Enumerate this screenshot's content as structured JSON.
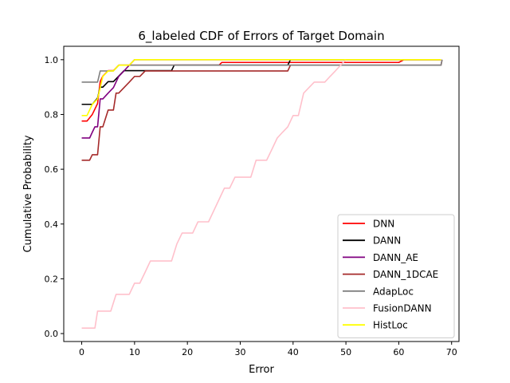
{
  "chart_data": {
    "type": "line",
    "title": "6_labeled CDF of Errors of Target Domain",
    "xlabel": "Error",
    "ylabel": "Cumulative Probability",
    "xlim": [
      -3.4,
      71.4
    ],
    "ylim": [
      -0.029,
      1.049
    ],
    "xticks": [
      0,
      10,
      20,
      30,
      40,
      50,
      60,
      70
    ],
    "yticks": [
      0.0,
      0.2,
      0.4,
      0.6,
      0.8,
      1.0
    ],
    "xtick_labels": [
      "0",
      "10",
      "20",
      "30",
      "40",
      "50",
      "60",
      "70"
    ],
    "ytick_labels": [
      "0.0",
      "0.2",
      "0.4",
      "0.6",
      "0.8",
      "1.0"
    ],
    "grid": false,
    "legend": "lower-right",
    "series": [
      {
        "name": "DNN",
        "color": "#ff0000",
        "points": [
          [
            0,
            0.776
          ],
          [
            1,
            0.776
          ],
          [
            2,
            0.8
          ],
          [
            2.5,
            0.82
          ],
          [
            3,
            0.84
          ],
          [
            3.5,
            0.92
          ],
          [
            4,
            0.94
          ],
          [
            5,
            0.96
          ],
          [
            6,
            0.96
          ],
          [
            7,
            0.98
          ],
          [
            9,
            0.98
          ],
          [
            10,
            0.98
          ],
          [
            26,
            0.98
          ],
          [
            26.5,
            0.99
          ],
          [
            27,
            0.99
          ],
          [
            40,
            0.99
          ],
          [
            50,
            0.99
          ],
          [
            60,
            0.99
          ],
          [
            61,
            1.0
          ],
          [
            68,
            1.0
          ]
        ]
      },
      {
        "name": "DANN",
        "color": "#000000",
        "points": [
          [
            0,
            0.837
          ],
          [
            2,
            0.837
          ],
          [
            3,
            0.86
          ],
          [
            3.5,
            0.9
          ],
          [
            4,
            0.9
          ],
          [
            5,
            0.92
          ],
          [
            6,
            0.92
          ],
          [
            7,
            0.94
          ],
          [
            8,
            0.96
          ],
          [
            17,
            0.96
          ],
          [
            17.5,
            0.98
          ],
          [
            39,
            0.98
          ],
          [
            39.5,
            1.0
          ],
          [
            68,
            1.0
          ]
        ]
      },
      {
        "name": "DANN_AE",
        "color": "#800080",
        "points": [
          [
            0,
            0.714
          ],
          [
            1.5,
            0.714
          ],
          [
            2,
            0.735
          ],
          [
            2.5,
            0.755
          ],
          [
            3,
            0.755
          ],
          [
            3.5,
            0.857
          ],
          [
            4,
            0.857
          ],
          [
            5,
            0.878
          ],
          [
            6,
            0.898
          ],
          [
            7,
            0.939
          ],
          [
            8,
            0.959
          ],
          [
            9,
            0.98
          ],
          [
            10,
            1.0
          ],
          [
            68,
            1.0
          ]
        ]
      },
      {
        "name": "DANN_1DCAE",
        "color": "#a52a2a",
        "points": [
          [
            0,
            0.633
          ],
          [
            1.5,
            0.633
          ],
          [
            2,
            0.653
          ],
          [
            3,
            0.653
          ],
          [
            3.5,
            0.755
          ],
          [
            4,
            0.755
          ],
          [
            5,
            0.816
          ],
          [
            6,
            0.816
          ],
          [
            6.5,
            0.878
          ],
          [
            7,
            0.878
          ],
          [
            8,
            0.898
          ],
          [
            9,
            0.918
          ],
          [
            10,
            0.939
          ],
          [
            11,
            0.939
          ],
          [
            12,
            0.959
          ],
          [
            39,
            0.959
          ],
          [
            39.5,
            0.98
          ],
          [
            68,
            0.98
          ],
          [
            68.2,
            1.0
          ]
        ]
      },
      {
        "name": "AdapLoc",
        "color": "#808080",
        "points": [
          [
            0,
            0.918
          ],
          [
            3,
            0.918
          ],
          [
            3.5,
            0.959
          ],
          [
            6,
            0.959
          ],
          [
            7,
            0.98
          ],
          [
            68,
            0.98
          ],
          [
            68.2,
            1.0
          ]
        ]
      },
      {
        "name": "FusionDANN",
        "color": "#ffc0cb",
        "points": [
          [
            0,
            0.02
          ],
          [
            2.5,
            0.02
          ],
          [
            3,
            0.082
          ],
          [
            5.5,
            0.082
          ],
          [
            6.5,
            0.143
          ],
          [
            9,
            0.143
          ],
          [
            10,
            0.184
          ],
          [
            11,
            0.184
          ],
          [
            12,
            0.224
          ],
          [
            13,
            0.265
          ],
          [
            17,
            0.265
          ],
          [
            18,
            0.327
          ],
          [
            19,
            0.367
          ],
          [
            21,
            0.367
          ],
          [
            22,
            0.408
          ],
          [
            24,
            0.408
          ],
          [
            25,
            0.449
          ],
          [
            26,
            0.49
          ],
          [
            27,
            0.531
          ],
          [
            28,
            0.531
          ],
          [
            29,
            0.571
          ],
          [
            32,
            0.571
          ],
          [
            33,
            0.633
          ],
          [
            35,
            0.633
          ],
          [
            36,
            0.673
          ],
          [
            37,
            0.714
          ],
          [
            38,
            0.735
          ],
          [
            39,
            0.755
          ],
          [
            40,
            0.796
          ],
          [
            41,
            0.796
          ],
          [
            41.5,
            0.837
          ],
          [
            42,
            0.878
          ],
          [
            43,
            0.898
          ],
          [
            44,
            0.918
          ],
          [
            46,
            0.918
          ],
          [
            47,
            0.939
          ],
          [
            48,
            0.959
          ],
          [
            49,
            0.98
          ],
          [
            50,
            1.0
          ],
          [
            68,
            1.0
          ]
        ]
      },
      {
        "name": "HistLoc",
        "color": "#ffff00",
        "points": [
          [
            0,
            0.796
          ],
          [
            1,
            0.796
          ],
          [
            2,
            0.837
          ],
          [
            3,
            0.857
          ],
          [
            3.5,
            0.898
          ],
          [
            4,
            0.939
          ],
          [
            5,
            0.959
          ],
          [
            6,
            0.959
          ],
          [
            7,
            0.98
          ],
          [
            9,
            0.98
          ],
          [
            10,
            1.0
          ],
          [
            68,
            1.0
          ]
        ]
      }
    ]
  }
}
